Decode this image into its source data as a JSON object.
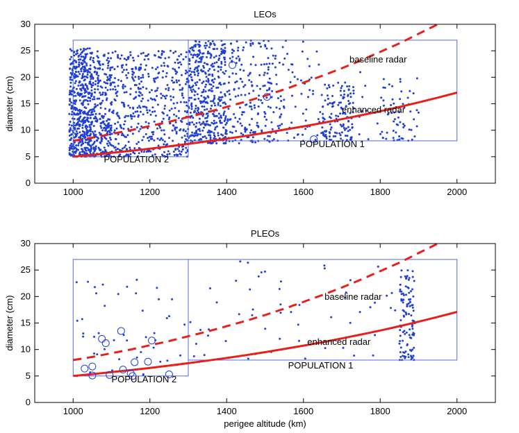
{
  "colors": {
    "points": "#1f3fd6",
    "curves": "#e8201a",
    "boxes": "#5468e0"
  },
  "chart_data": [
    {
      "type": "scatter",
      "title": "LEOs",
      "xlabel": "",
      "ylabel": "diameter (cm)",
      "xlim": [
        900,
        2100
      ],
      "ylim": [
        0,
        30
      ],
      "xticks": [
        1000,
        1200,
        1400,
        1600,
        1800,
        2000
      ],
      "yticks": [
        0,
        5,
        10,
        15,
        20,
        25,
        30
      ],
      "populations": [
        {
          "name": "population-2",
          "label": "POPULATION 2",
          "x": [
            1000,
            1300
          ],
          "y": [
            5,
            27
          ],
          "label_at": [
            1080,
            3.9
          ]
        },
        {
          "name": "population-1",
          "label": "POPULATION 1",
          "x": [
            1300,
            2000
          ],
          "y": [
            8,
            27
          ],
          "label_at": [
            1590,
            6.8
          ]
        }
      ],
      "curves": [
        {
          "name": "baseline radar",
          "style": "dashed",
          "x": [
            1000,
            1050,
            1100,
            1150,
            1200,
            1250,
            1300,
            1350,
            1400,
            1450,
            1500,
            1550,
            1600,
            1650,
            1700,
            1750,
            1800,
            1850,
            1900,
            1950
          ],
          "y": [
            8.0,
            8.6,
            9.3,
            10.0,
            10.8,
            11.6,
            12.5,
            13.4,
            14.4,
            15.4,
            16.5,
            17.7,
            19.0,
            20.3,
            21.7,
            23.2,
            24.8,
            26.4,
            28.2,
            30.0
          ]
        },
        {
          "name": "enhanced radar",
          "style": "solid",
          "x": [
            1000,
            1050,
            1100,
            1150,
            1200,
            1250,
            1300,
            1350,
            1400,
            1450,
            1500,
            1550,
            1600,
            1650,
            1700,
            1750,
            1800,
            1850,
            1900,
            1950,
            2000
          ],
          "y": [
            5.0,
            5.35,
            5.72,
            6.11,
            6.52,
            6.96,
            7.42,
            7.9,
            8.4,
            8.94,
            9.5,
            10.1,
            10.73,
            11.39,
            12.09,
            12.82,
            13.59,
            14.4,
            15.25,
            16.15,
            17.1
          ]
        }
      ],
      "curve_labels": [
        {
          "text": "baseline radar",
          "at": [
            1720,
            22.8
          ]
        },
        {
          "text": "enhanced radar",
          "at": [
            1700,
            13.3
          ]
        }
      ],
      "scatter_clusters": [
        {
          "x": [
            990,
            1050
          ],
          "y": [
            5,
            25.5
          ],
          "n": 520
        },
        {
          "x": [
            1050,
            1100
          ],
          "y": [
            5,
            25
          ],
          "n": 260
        },
        {
          "x": [
            1100,
            1160
          ],
          "y": [
            5,
            25
          ],
          "n": 150
        },
        {
          "x": [
            1160,
            1300
          ],
          "y": [
            5,
            25
          ],
          "n": 330
        },
        {
          "x": [
            1300,
            1400
          ],
          "y": [
            7.5,
            27
          ],
          "n": 430
        },
        {
          "x": [
            1400,
            1520
          ],
          "y": [
            7.5,
            27
          ],
          "n": 190
        },
        {
          "x": [
            1520,
            1650
          ],
          "y": [
            8,
            27
          ],
          "n": 80
        },
        {
          "x": [
            1650,
            1730
          ],
          "y": [
            8,
            19
          ],
          "n": 130
        },
        {
          "x": [
            1730,
            1820
          ],
          "y": [
            8,
            23
          ],
          "n": 25
        },
        {
          "x": [
            1820,
            1900
          ],
          "y": [
            8,
            20
          ],
          "n": 50
        }
      ],
      "circles": [
        {
          "x": 1415,
          "y": 22.3
        },
        {
          "x": 1505,
          "y": 16.3
        },
        {
          "x": 1627,
          "y": 8.3
        }
      ]
    },
    {
      "type": "scatter",
      "title": "PLEOs",
      "xlabel": "perigee altitude (km)",
      "ylabel": "diameter (cm)",
      "xlim": [
        900,
        2100
      ],
      "ylim": [
        0,
        30
      ],
      "xticks": [
        1000,
        1200,
        1400,
        1600,
        1800,
        2000
      ],
      "yticks": [
        0,
        5,
        10,
        15,
        20,
        25,
        30
      ],
      "populations": [
        {
          "name": "population-2",
          "label": "POPULATION 2",
          "x": [
            1000,
            1300
          ],
          "y": [
            5,
            27
          ],
          "label_at": [
            1100,
            3.8
          ]
        },
        {
          "name": "population-1",
          "label": "POPULATION 1",
          "x": [
            1300,
            2000
          ],
          "y": [
            8,
            27
          ],
          "label_at": [
            1560,
            6.4
          ]
        }
      ],
      "curves": [
        {
          "name": "baseline radar",
          "style": "dashed",
          "x": [
            1000,
            1050,
            1100,
            1150,
            1200,
            1250,
            1300,
            1350,
            1400,
            1450,
            1500,
            1550,
            1600,
            1650,
            1700,
            1750,
            1800,
            1850,
            1900,
            1950
          ],
          "y": [
            8.0,
            8.6,
            9.3,
            10.0,
            10.8,
            11.6,
            12.5,
            13.4,
            14.4,
            15.4,
            16.5,
            17.7,
            19.0,
            20.3,
            21.7,
            23.2,
            24.8,
            26.4,
            28.2,
            30.0
          ]
        },
        {
          "name": "enhanced radar",
          "style": "solid",
          "x": [
            1000,
            1050,
            1100,
            1150,
            1200,
            1250,
            1300,
            1350,
            1400,
            1450,
            1500,
            1550,
            1600,
            1650,
            1700,
            1750,
            1800,
            1850,
            1900,
            1950,
            2000
          ],
          "y": [
            5.0,
            5.35,
            5.72,
            6.11,
            6.52,
            6.96,
            7.42,
            7.9,
            8.4,
            8.94,
            9.5,
            10.1,
            10.73,
            11.39,
            12.09,
            12.82,
            13.59,
            14.4,
            15.25,
            16.15,
            17.1
          ]
        }
      ],
      "curve_labels": [
        {
          "text": "baseline radar",
          "at": [
            1655,
            19.4
          ]
        },
        {
          "text": "enhanced radar",
          "at": [
            1610,
            10.9
          ]
        }
      ],
      "scatter_clusters": [
        {
          "x": [
            1000,
            1300
          ],
          "y": [
            5,
            25
          ],
          "n": 45
        },
        {
          "x": [
            1300,
            1850
          ],
          "y": [
            8,
            27
          ],
          "n": 55
        },
        {
          "x": [
            1850,
            1890
          ],
          "y": [
            8,
            25
          ],
          "n": 110
        }
      ],
      "circles": [
        {
          "x": 1030,
          "y": 6.4
        },
        {
          "x": 1050,
          "y": 6.8
        },
        {
          "x": 1050,
          "y": 5.1
        },
        {
          "x": 1075,
          "y": 12.0
        },
        {
          "x": 1085,
          "y": 11.2
        },
        {
          "x": 1095,
          "y": 5.2
        },
        {
          "x": 1125,
          "y": 13.5
        },
        {
          "x": 1130,
          "y": 6.2
        },
        {
          "x": 1150,
          "y": 5.5
        },
        {
          "x": 1155,
          "y": 5.0
        },
        {
          "x": 1160,
          "y": 7.6
        },
        {
          "x": 1195,
          "y": 7.7
        },
        {
          "x": 1205,
          "y": 11.7
        },
        {
          "x": 1250,
          "y": 5.3
        }
      ]
    }
  ]
}
